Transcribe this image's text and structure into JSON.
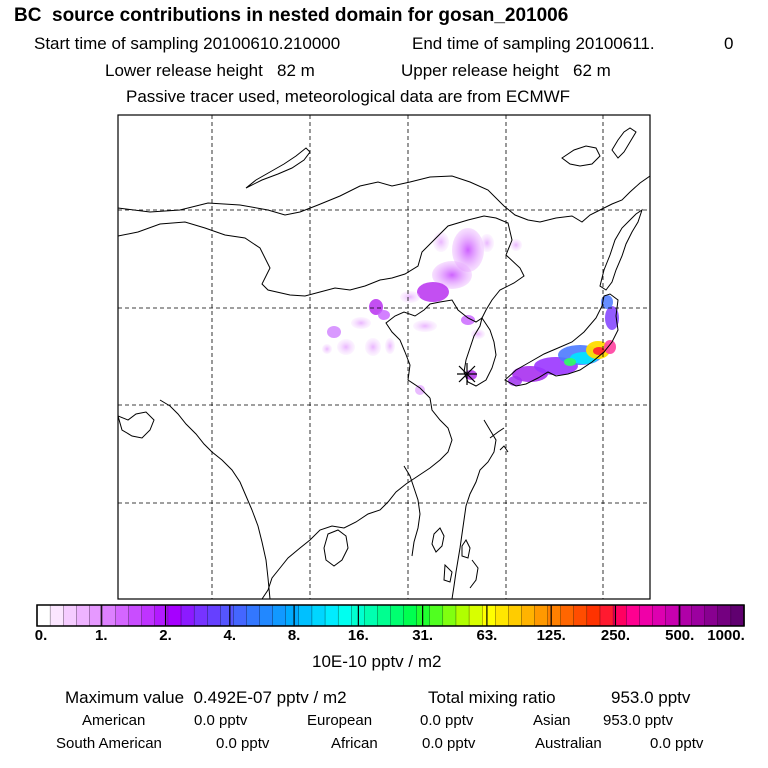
{
  "header": {
    "title": "BC  source contributions in nested domain for gosan_201006",
    "start_label": "Start time of sampling 20100610.210000",
    "end_label": "End time of sampling 20100611.",
    "end_value": "0",
    "lower_release": "Lower release height   82 m",
    "upper_release": "Upper release height   62 m",
    "note": "Passive tracer used, meteorological data are from ECMWF"
  },
  "colorbar": {
    "tick_labels": [
      "0.",
      "1.",
      "2.",
      "4.",
      "8.",
      "16.",
      "31.",
      "63.",
      "125.",
      "250.",
      "500.",
      "1000."
    ],
    "units": "10E-10 pptv / m2",
    "colors": [
      "#ffffff",
      "#fbe6ff",
      "#f5ccff",
      "#eeb3ff",
      "#e699ff",
      "#dd80ff",
      "#d466ff",
      "#c94dff",
      "#bf33ff",
      "#b31aff",
      "#a600ff",
      "#8c1aff",
      "#7733ff",
      "#6640ff",
      "#5555ff",
      "#4466ff",
      "#3377ff",
      "#2288ff",
      "#1199ff",
      "#00aaff",
      "#00c0ff",
      "#00d6ff",
      "#00ecff",
      "#00fff0",
      "#00ffd0",
      "#00ffb0",
      "#00ff90",
      "#00ff70",
      "#00ff50",
      "#20ff30",
      "#50ff20",
      "#80ff10",
      "#b0ff00",
      "#d8ff00",
      "#ffff00",
      "#ffe600",
      "#ffcc00",
      "#ffb300",
      "#ff9900",
      "#ff8000",
      "#ff6600",
      "#ff4d00",
      "#ff3300",
      "#ff1a30",
      "#ff0060",
      "#ff0090",
      "#f000a8",
      "#dd00b0",
      "#c800b0",
      "#b000a8",
      "#9c00a0",
      "#880090",
      "#740080",
      "#600070"
    ]
  },
  "stats": {
    "max_label": "Maximum value  0.492E-07 pptv / m2",
    "total_label": "Total mixing ratio",
    "total_value": "953.0 pptv"
  },
  "regions": [
    {
      "name": "American",
      "value": "0.0 pptv"
    },
    {
      "name": "European",
      "value": "0.0 pptv"
    },
    {
      "name": "Asian",
      "value": "953.0 pptv"
    },
    {
      "name": "South American",
      "value": "0.0 pptv"
    },
    {
      "name": "African",
      "value": "0.0 pptv"
    },
    {
      "name": "Australian",
      "value": "0.0 pptv"
    }
  ]
}
